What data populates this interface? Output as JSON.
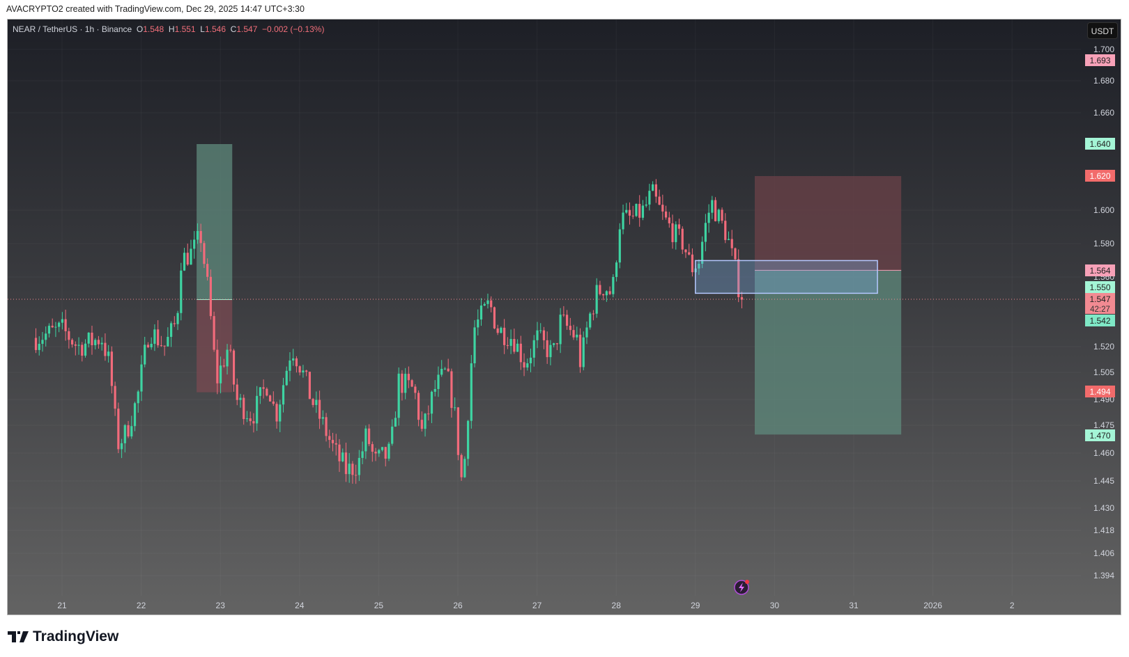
{
  "attribution": "AVACRYPTO2 created with TradingView.com, Dec 29, 2025 14:47 UTC+3:30",
  "legend": {
    "symbol": "NEAR / TetherUS · 1h · Binance",
    "o_label": "O",
    "o": "1.548",
    "h_label": "H",
    "h": "1.551",
    "l_label": "L",
    "l": "1.546",
    "c_label": "C",
    "c": "1.547",
    "change": "−0.002 (−0.13%)"
  },
  "currency": "USDT",
  "brand": "TradingView",
  "colors": {
    "up": "#3ed4a2",
    "down": "#f26b7b",
    "tp": "#5f8a7c",
    "sl": "#6b4148"
  },
  "chart_data": {
    "type": "candlestick",
    "title": "NEAR / TetherUS · 1h · Binance",
    "x_ticks": [
      "21",
      "22",
      "23",
      "24",
      "25",
      "26",
      "27",
      "28",
      "29",
      "30",
      "31",
      "2026",
      "2"
    ],
    "y_ticks": [
      "1.700",
      "1.680",
      "1.660",
      "1.600",
      "1.580",
      "1.560",
      "1.520",
      "1.505",
      "1.490",
      "1.475",
      "1.460",
      "1.445",
      "1.430",
      "1.418",
      "1.406",
      "1.394"
    ],
    "price_badges": [
      {
        "value": "1.693",
        "color": "#f7a1b8",
        "text": "#222"
      },
      {
        "value": "1.640",
        "color": "#a4f5d6",
        "text": "#222"
      },
      {
        "value": "1.620",
        "color": "#f26b6b",
        "text": "#fff"
      },
      {
        "value": "1.564",
        "color": "#f7a1b8",
        "text": "#222"
      },
      {
        "value": "1.550",
        "color": "#a4f5d6",
        "text": "#222"
      },
      {
        "value": "1.547",
        "color": "#f28a92",
        "text": "#222",
        "sub": "42:27"
      },
      {
        "value": "1.542",
        "color": "#7fe8c6",
        "text": "#222"
      },
      {
        "value": "1.494",
        "color": "#f26b6b",
        "text": "#fff"
      },
      {
        "value": "1.470",
        "color": "#a4f5d6",
        "text": "#222"
      }
    ],
    "last_price": 1.547,
    "price_path_day_price": [
      [
        20.67,
        1.525
      ],
      [
        21.0,
        1.53
      ],
      [
        21.2,
        1.52
      ],
      [
        21.5,
        1.525
      ],
      [
        21.6,
        1.51
      ],
      [
        21.7,
        1.465
      ],
      [
        21.8,
        1.47
      ],
      [
        21.95,
        1.49
      ],
      [
        22.1,
        1.53
      ],
      [
        22.3,
        1.52
      ],
      [
        22.45,
        1.535
      ],
      [
        22.5,
        1.57
      ],
      [
        22.65,
        1.575
      ],
      [
        22.75,
        1.585
      ],
      [
        22.85,
        1.55
      ],
      [
        22.95,
        1.5
      ],
      [
        23.1,
        1.52
      ],
      [
        23.2,
        1.49
      ],
      [
        23.4,
        1.48
      ],
      [
        23.6,
        1.5
      ],
      [
        23.7,
        1.48
      ],
      [
        23.9,
        1.52
      ],
      [
        24.0,
        1.51
      ],
      [
        24.15,
        1.49
      ],
      [
        24.3,
        1.475
      ],
      [
        24.45,
        1.46
      ],
      [
        24.6,
        1.45
      ],
      [
        24.75,
        1.455
      ],
      [
        24.85,
        1.47
      ],
      [
        24.95,
        1.455
      ],
      [
        25.15,
        1.46
      ],
      [
        25.25,
        1.5
      ],
      [
        25.45,
        1.495
      ],
      [
        25.55,
        1.47
      ],
      [
        25.7,
        1.495
      ],
      [
        25.85,
        1.505
      ],
      [
        25.95,
        1.485
      ],
      [
        26.06,
        1.44
      ],
      [
        26.2,
        1.53
      ],
      [
        26.4,
        1.545
      ],
      [
        26.5,
        1.53
      ],
      [
        26.7,
        1.525
      ],
      [
        26.85,
        1.51
      ],
      [
        27.0,
        1.525
      ],
      [
        27.2,
        1.515
      ],
      [
        27.3,
        1.535
      ],
      [
        27.5,
        1.525
      ],
      [
        27.55,
        1.51
      ],
      [
        27.65,
        1.535
      ],
      [
        27.75,
        1.55
      ],
      [
        27.85,
        1.555
      ],
      [
        27.95,
        1.55
      ],
      [
        28.05,
        1.595
      ],
      [
        28.2,
        1.595
      ],
      [
        28.35,
        1.6
      ],
      [
        28.45,
        1.61
      ],
      [
        28.6,
        1.595
      ],
      [
        28.75,
        1.585
      ],
      [
        28.85,
        1.58
      ],
      [
        28.95,
        1.565
      ],
      [
        29.05,
        1.57
      ],
      [
        29.1,
        1.585
      ],
      [
        29.2,
        1.605
      ],
      [
        29.3,
        1.595
      ],
      [
        29.4,
        1.585
      ],
      [
        29.5,
        1.565
      ],
      [
        29.58,
        1.547
      ]
    ],
    "positions": [
      {
        "type": "long",
        "start_day": 22.7,
        "end_day": 23.15,
        "entry": 1.547,
        "target": 1.64,
        "stop": 1.494
      },
      {
        "type": "short",
        "start_day": 29.75,
        "end_day": 31.6,
        "entry": 1.564,
        "target": 1.47,
        "stop": 1.62
      }
    ],
    "zone": {
      "start_day": 29.0,
      "end_day": 31.3,
      "top": 1.569,
      "bottom": 1.549
    }
  }
}
